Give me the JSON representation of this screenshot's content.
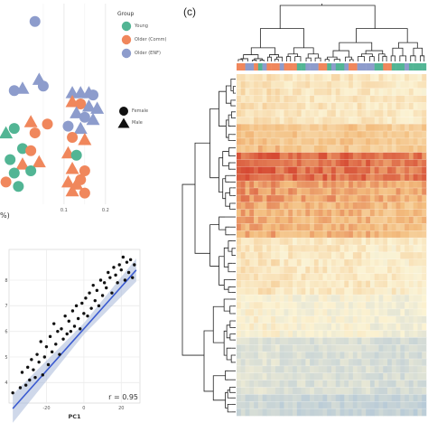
{
  "figure": {
    "panel_c_label": "(c)",
    "top_axis_fragment": "%)",
    "colors": {
      "young": "#52b594",
      "older_comm": "#f0875c",
      "older_enf": "#8d9ccc",
      "heat_low": "#9dbad8",
      "heat_mid": "#fbf3d4",
      "heat_high": "#d64a33",
      "fit_line": "#3a5ad0",
      "fit_band": "#a8b8d8"
    }
  },
  "legend": {
    "group_title": "Group",
    "groups": [
      "Young",
      "Older (Comm)",
      "Older (ENF)"
    ],
    "sex_items": [
      "Female",
      "Male"
    ]
  },
  "chart_data": [
    {
      "type": "scatter",
      "panel": "top-left",
      "xlim": [
        -0.05,
        0.22
      ],
      "x_ticks": [
        0.1,
        0.2
      ],
      "points": [
        {
          "x": 0.03,
          "y": 9.2,
          "group": "Older (ENF)",
          "sex": "Female"
        },
        {
          "x": 0.04,
          "y": 6.6,
          "group": "Older (ENF)",
          "sex": "Male"
        },
        {
          "x": -0.02,
          "y": 6.1,
          "group": "Older (ENF)",
          "sex": "Female"
        },
        {
          "x": 0.0,
          "y": 6.2,
          "group": "Older (ENF)",
          "sex": "Male"
        },
        {
          "x": 0.05,
          "y": 6.3,
          "group": "Older (ENF)",
          "sex": "Female"
        },
        {
          "x": 0.12,
          "y": 6.0,
          "group": "Older (ENF)",
          "sex": "Male"
        },
        {
          "x": 0.14,
          "y": 6.0,
          "group": "Older (ENF)",
          "sex": "Male"
        },
        {
          "x": 0.16,
          "y": 6.0,
          "group": "Older (ENF)",
          "sex": "Male"
        },
        {
          "x": 0.17,
          "y": 5.9,
          "group": "Older (ENF)",
          "sex": "Female"
        },
        {
          "x": 0.12,
          "y": 5.6,
          "group": "Older (Comm)",
          "sex": "Male"
        },
        {
          "x": 0.14,
          "y": 5.5,
          "group": "Older (Comm)",
          "sex": "Female"
        },
        {
          "x": 0.16,
          "y": 5.4,
          "group": "Older (ENF)",
          "sex": "Male"
        },
        {
          "x": 0.18,
          "y": 5.3,
          "group": "Older (ENF)",
          "sex": "Male"
        },
        {
          "x": 0.13,
          "y": 5.1,
          "group": "Older (ENF)",
          "sex": "Male"
        },
        {
          "x": 0.15,
          "y": 4.9,
          "group": "Older (ENF)",
          "sex": "Female"
        },
        {
          "x": 0.17,
          "y": 4.8,
          "group": "Older (ENF)",
          "sex": "Male"
        },
        {
          "x": 0.11,
          "y": 4.5,
          "group": "Older (ENF)",
          "sex": "Female"
        },
        {
          "x": 0.14,
          "y": 4.4,
          "group": "Older (ENF)",
          "sex": "Male"
        },
        {
          "x": 0.12,
          "y": 4.0,
          "group": "Older (Comm)",
          "sex": "Female"
        },
        {
          "x": 0.15,
          "y": 3.9,
          "group": "Older (Comm)",
          "sex": "Male"
        },
        {
          "x": 0.02,
          "y": 4.7,
          "group": "Older (Comm)",
          "sex": "Male"
        },
        {
          "x": 0.06,
          "y": 4.6,
          "group": "Older (Comm)",
          "sex": "Female"
        },
        {
          "x": 0.03,
          "y": 4.2,
          "group": "Older (Comm)",
          "sex": "Female"
        },
        {
          "x": -0.02,
          "y": 4.4,
          "group": "Young",
          "sex": "Female"
        },
        {
          "x": -0.04,
          "y": 4.2,
          "group": "Young",
          "sex": "Male"
        },
        {
          "x": 0.0,
          "y": 3.5,
          "group": "Young",
          "sex": "Female"
        },
        {
          "x": 0.02,
          "y": 3.4,
          "group": "Older (Comm)",
          "sex": "Female"
        },
        {
          "x": -0.03,
          "y": 3.0,
          "group": "Young",
          "sex": "Female"
        },
        {
          "x": 0.0,
          "y": 2.8,
          "group": "Older (Comm)",
          "sex": "Male"
        },
        {
          "x": 0.04,
          "y": 2.9,
          "group": "Older (Comm)",
          "sex": "Male"
        },
        {
          "x": -0.02,
          "y": 2.4,
          "group": "Young",
          "sex": "Female"
        },
        {
          "x": 0.02,
          "y": 2.5,
          "group": "Young",
          "sex": "Female"
        },
        {
          "x": -0.04,
          "y": 2.0,
          "group": "Older (Comm)",
          "sex": "Female"
        },
        {
          "x": -0.01,
          "y": 1.8,
          "group": "Young",
          "sex": "Female"
        },
        {
          "x": 0.11,
          "y": 3.3,
          "group": "Older (Comm)",
          "sex": "Male"
        },
        {
          "x": 0.13,
          "y": 3.2,
          "group": "Young",
          "sex": "Female"
        },
        {
          "x": 0.12,
          "y": 2.6,
          "group": "Older (Comm)",
          "sex": "Male"
        },
        {
          "x": 0.15,
          "y": 2.5,
          "group": "Older (Comm)",
          "sex": "Female"
        },
        {
          "x": 0.14,
          "y": 2.1,
          "group": "Older (Comm)",
          "sex": "Female"
        },
        {
          "x": 0.11,
          "y": 2.0,
          "group": "Older (Comm)",
          "sex": "Male"
        },
        {
          "x": 0.13,
          "y": 1.9,
          "group": "Older (Comm)",
          "sex": "Male"
        },
        {
          "x": 0.12,
          "y": 1.6,
          "group": "Older (Comm)",
          "sex": "Male"
        },
        {
          "x": 0.15,
          "y": 1.5,
          "group": "Older (Comm)",
          "sex": "Female"
        }
      ]
    },
    {
      "type": "scatter",
      "panel": "bottom-left",
      "xlabel": "PC1",
      "xlim": [
        -40,
        30
      ],
      "ylim": [
        3.2,
        9.2
      ],
      "x_ticks": [
        -20,
        0,
        20
      ],
      "x_tick_labels": [
        "-20",
        "0",
        "20"
      ],
      "y_ticks": [
        4,
        5,
        6,
        7,
        8
      ],
      "y_tick_labels": [
        "4",
        "5",
        "6",
        "7",
        "8"
      ],
      "annotation": "r = 0.95",
      "fit": {
        "slope": 0.082,
        "intercept": 6.1
      },
      "points": [
        {
          "x": -38,
          "y": 3.6
        },
        {
          "x": -34,
          "y": 3.8
        },
        {
          "x": -33,
          "y": 4.4
        },
        {
          "x": -31,
          "y": 3.9
        },
        {
          "x": -30,
          "y": 4.6
        },
        {
          "x": -29,
          "y": 4.1
        },
        {
          "x": -28,
          "y": 4.9
        },
        {
          "x": -27,
          "y": 4.5
        },
        {
          "x": -26,
          "y": 4.2
        },
        {
          "x": -25,
          "y": 5.1
        },
        {
          "x": -24,
          "y": 4.8
        },
        {
          "x": -23,
          "y": 5.6
        },
        {
          "x": -22,
          "y": 4.3
        },
        {
          "x": -21,
          "y": 5.0
        },
        {
          "x": -20,
          "y": 5.4
        },
        {
          "x": -19,
          "y": 4.7
        },
        {
          "x": -18,
          "y": 5.8
        },
        {
          "x": -17,
          "y": 5.2
        },
        {
          "x": -16,
          "y": 6.3
        },
        {
          "x": -15,
          "y": 5.5
        },
        {
          "x": -14,
          "y": 6.0
        },
        {
          "x": -13,
          "y": 5.1
        },
        {
          "x": -12,
          "y": 6.1
        },
        {
          "x": -11,
          "y": 5.7
        },
        {
          "x": -10,
          "y": 6.6
        },
        {
          "x": -9,
          "y": 5.9
        },
        {
          "x": -8,
          "y": 6.4
        },
        {
          "x": -7,
          "y": 6.0
        },
        {
          "x": -6,
          "y": 6.8
        },
        {
          "x": -5,
          "y": 6.2
        },
        {
          "x": -4,
          "y": 7.0
        },
        {
          "x": -3,
          "y": 6.5
        },
        {
          "x": -2,
          "y": 6.1
        },
        {
          "x": -1,
          "y": 7.1
        },
        {
          "x": 0,
          "y": 6.7
        },
        {
          "x": 1,
          "y": 7.3
        },
        {
          "x": 2,
          "y": 6.6
        },
        {
          "x": 3,
          "y": 7.5
        },
        {
          "x": 4,
          "y": 6.9
        },
        {
          "x": 5,
          "y": 7.8
        },
        {
          "x": 6,
          "y": 7.2
        },
        {
          "x": 7,
          "y": 7.6
        },
        {
          "x": 8,
          "y": 7.0
        },
        {
          "x": 9,
          "y": 8.0
        },
        {
          "x": 10,
          "y": 7.4
        },
        {
          "x": 11,
          "y": 7.9
        },
        {
          "x": 12,
          "y": 7.7
        },
        {
          "x": 13,
          "y": 8.3
        },
        {
          "x": 14,
          "y": 8.1
        },
        {
          "x": 15,
          "y": 7.5
        },
        {
          "x": 16,
          "y": 8.5
        },
        {
          "x": 17,
          "y": 8.2
        },
        {
          "x": 18,
          "y": 7.9
        },
        {
          "x": 19,
          "y": 8.6
        },
        {
          "x": 20,
          "y": 8.4
        },
        {
          "x": 21,
          "y": 8.9
        },
        {
          "x": 22,
          "y": 8.0
        },
        {
          "x": 23,
          "y": 8.7
        },
        {
          "x": 24,
          "y": 8.3
        },
        {
          "x": 25,
          "y": 8.8
        },
        {
          "x": 26,
          "y": 8.1
        },
        {
          "x": 27,
          "y": 8.6
        }
      ]
    },
    {
      "type": "heatmap",
      "panel": "c",
      "n_rows": 48,
      "n_cols": 44,
      "row_dendrogram": true,
      "column_dendrogram": true,
      "column_annotation_groups": [
        "Young",
        "Older (Comm)",
        "Older (ENF)"
      ],
      "row_bands": [
        {
          "from": 0,
          "to": 7,
          "level": 0.15
        },
        {
          "from": 7,
          "to": 11,
          "level": 0.45
        },
        {
          "from": 11,
          "to": 15,
          "level": 0.85
        },
        {
          "from": 15,
          "to": 18,
          "level": 0.65
        },
        {
          "from": 18,
          "to": 23,
          "level": 0.55
        },
        {
          "from": 23,
          "to": 31,
          "level": 0.12
        },
        {
          "from": 31,
          "to": 37,
          "level": -0.05
        },
        {
          "from": 37,
          "to": 45,
          "level": -0.35
        },
        {
          "from": 45,
          "to": 48,
          "level": -0.55
        }
      ],
      "scale": "diverging blue-yellow-red"
    }
  ]
}
